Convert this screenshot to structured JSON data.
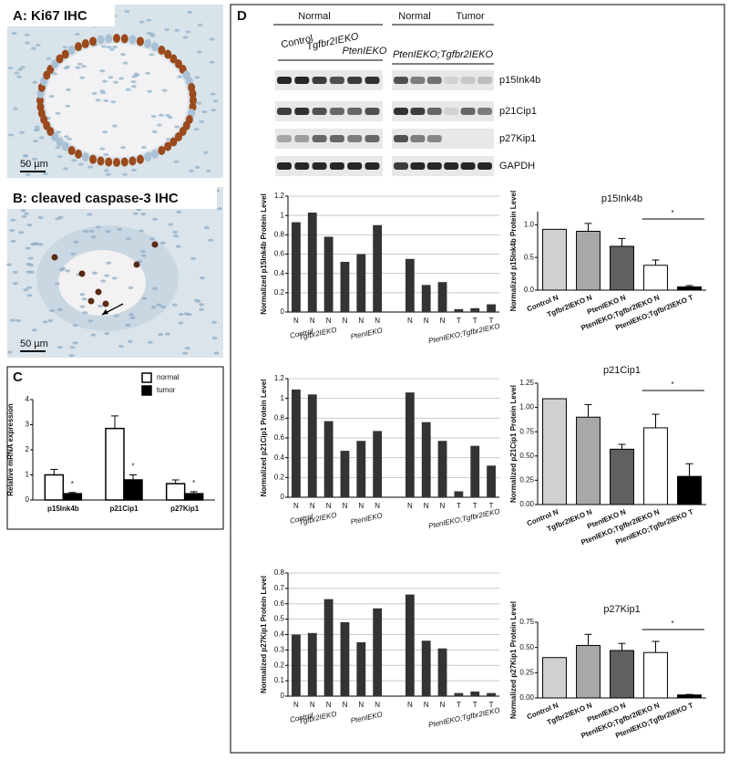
{
  "panels": {
    "A": {
      "title": "A: Ki67 IHC",
      "scale": "50 µm"
    },
    "B": {
      "title": "B: cleaved caspase-3 IHC",
      "scale": "50 µm"
    },
    "D": {
      "label": "D"
    }
  },
  "blot": {
    "groups": [
      "Normal",
      "Normal",
      "Tumor"
    ],
    "genotypes": [
      "Control",
      "Tgfbr2IEKO",
      "PtenIEKO",
      "PtenIEKO;Tgfbr2IEKO"
    ],
    "bands": [
      "p15Ink4b",
      "p21Cip1",
      "p27Kip1",
      "GAPDH"
    ]
  },
  "chart_data": [
    {
      "type": "bar",
      "panel": "C",
      "ylabel": "Relative mRNA expression",
      "categories": [
        "p15Ink4b",
        "p21Cip1",
        "p27Kip1"
      ],
      "ylim": [
        0,
        4
      ],
      "yticks": [
        0,
        1,
        2,
        3,
        4
      ],
      "series": [
        {
          "name": "normal",
          "color": "#ffffff",
          "values": [
            1.0,
            2.85,
            0.65
          ],
          "errors": [
            0.22,
            0.5,
            0.15
          ]
        },
        {
          "name": "tumor",
          "color": "#000000",
          "values": [
            0.25,
            0.8,
            0.25
          ],
          "errors": [
            0.05,
            0.2,
            0.08
          ]
        }
      ],
      "annotations": [
        "*",
        "*",
        "*"
      ],
      "legend": "upper right"
    },
    {
      "type": "bar",
      "ylabel": "Normalized p15Ink4b Protein Level",
      "categories": [
        "N",
        "N",
        "N",
        "N",
        "N",
        "N",
        null,
        "N",
        "N",
        "N",
        "T",
        "T",
        "T"
      ],
      "values": [
        0.93,
        1.03,
        0.78,
        0.52,
        0.6,
        0.9,
        null,
        0.55,
        0.28,
        0.31,
        0.03,
        0.04,
        0.08
      ],
      "color": "#333333",
      "ylim": [
        0,
        1.2
      ],
      "yticks": [
        0,
        0.2,
        0.4,
        0.6,
        0.8,
        1,
        1.2
      ],
      "grid": true,
      "group_labels": [
        "Control",
        "Tgfbr2IEKO",
        "PtenIEKO",
        "PtenIEKO;Tgfbr2IEKO"
      ]
    },
    {
      "type": "bar",
      "title": "p15Ink4b",
      "ylabel": "Normalized p15Ink4b Protein Level",
      "categories": [
        "Control N",
        "Tgfbr2IEKO N",
        "PtenIEKO N",
        "PtenIEKO;Tgfbr2IEKO N",
        "PtenIEKO;Tgfbr2IEKO T"
      ],
      "values": [
        0.93,
        0.9,
        0.67,
        0.38,
        0.05
      ],
      "errors": [
        null,
        0.12,
        0.12,
        0.08,
        0.02
      ],
      "colors": [
        "#d0d0d0",
        "#a8a8a8",
        "#606060",
        "#ffffff",
        "#000000"
      ],
      "ylim": [
        0,
        1.2
      ],
      "yticks": [
        {
          "value": 0,
          "label": "0.0"
        },
        0.5,
        {
          "value": 1,
          "label": "1.0"
        }
      ],
      "annotations": [
        "*"
      ]
    },
    {
      "type": "bar",
      "ylabel": "Normalized p21Cip1 Protein Level",
      "categories": [
        "N",
        "N",
        "N",
        "N",
        "N",
        "N",
        null,
        "N",
        "N",
        "N",
        "T",
        "T",
        "T"
      ],
      "values": [
        1.09,
        1.04,
        0.77,
        0.47,
        0.57,
        0.67,
        null,
        1.06,
        0.76,
        0.57,
        0.06,
        0.52,
        0.32
      ],
      "color": "#333333",
      "ylim": [
        0,
        1.2
      ],
      "yticks": [
        0,
        0.2,
        0.4,
        0.6,
        0.8,
        1,
        1.2
      ],
      "grid": true,
      "group_labels": [
        "Control",
        "Tgfbr2IEKO",
        "PtenIEKO",
        "PtenIEKO;Tgfbr2IEKO"
      ]
    },
    {
      "type": "bar",
      "title": "p21Cip1",
      "ylabel": "Normalized p21Cip1 Protein Level",
      "categories": [
        "Control N",
        "Tgfbr2IEKO N",
        "PtenIEKO N",
        "PtenIEKO;Tgfbr2IEKO N",
        "PtenIEKO;Tgfbr2IEKO T"
      ],
      "values": [
        1.09,
        0.9,
        0.57,
        0.79,
        0.29
      ],
      "errors": [
        null,
        0.13,
        0.05,
        0.14,
        0.13
      ],
      "colors": [
        "#d0d0d0",
        "#a8a8a8",
        "#606060",
        "#ffffff",
        "#000000"
      ],
      "ylim": [
        0,
        1.25
      ],
      "yticks": [
        {
          "value": 0,
          "label": "0.00"
        },
        0.25,
        {
          "value": 0.5,
          "label": "0.50"
        },
        0.75,
        {
          "value": 1,
          "label": "1.00"
        },
        1.25
      ],
      "annotations": [
        "*"
      ]
    },
    {
      "type": "bar",
      "ylabel": "Normalized p27Kip1 Protein Level",
      "categories": [
        "N",
        "N",
        "N",
        "N",
        "N",
        "N",
        null,
        "N",
        "N",
        "N",
        "T",
        "T",
        "T"
      ],
      "values": [
        0.4,
        0.41,
        0.63,
        0.48,
        0.35,
        0.57,
        null,
        0.66,
        0.36,
        0.31,
        0.02,
        0.03,
        0.02
      ],
      "color": "#333333",
      "ylim": [
        0,
        0.8
      ],
      "yticks": [
        0,
        0.1,
        0.2,
        0.3,
        0.4,
        0.5,
        0.6,
        0.7,
        0.8
      ],
      "grid": true,
      "group_labels": [
        "Control",
        "Tgfbr2IEKO",
        "PtenIEKO",
        "PtenIEKO;Tgfbr2IEKO"
      ]
    },
    {
      "type": "bar",
      "title": "p27Kip1",
      "ylabel": "Normalized p27Kip1 Protein Level",
      "categories": [
        "Control N",
        "Tgfbr2IEKO N",
        "PtenIEKO N",
        "PtenIEKO;Tgfbr2IEKO N",
        "PtenIEKO;Tgfbr2IEKO T"
      ],
      "values": [
        0.4,
        0.52,
        0.47,
        0.45,
        0.03
      ],
      "errors": [
        null,
        0.11,
        0.07,
        0.11,
        0.005
      ],
      "colors": [
        "#d0d0d0",
        "#a8a8a8",
        "#606060",
        "#ffffff",
        "#000000"
      ],
      "ylim": [
        0,
        0.75
      ],
      "yticks": [
        {
          "value": 0,
          "label": "0.00"
        },
        0.25,
        {
          "value": 0.5,
          "label": "0.50"
        },
        0.75
      ],
      "annotations": [
        "*"
      ]
    }
  ]
}
